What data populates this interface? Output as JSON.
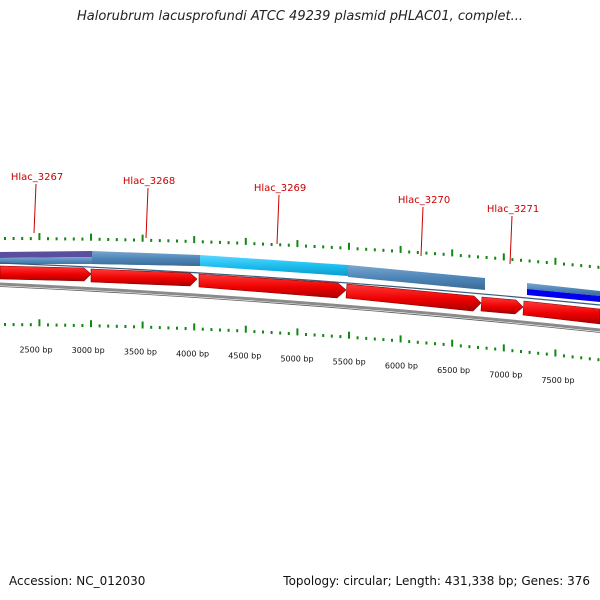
{
  "title": "Halorubrum lacusprofundi ATCC 49239 plasmid pHLAC01, complet...",
  "footer": {
    "accession": "Accession: NC_012030",
    "summary": "Topology: circular; Length: 431,338 bp; Genes: 376"
  },
  "genes": [
    "Hlac_3267",
    "Hlac_3268",
    "Hlac_3269",
    "Hlac_3270",
    "Hlac_3271"
  ],
  "scale_labels": [
    "2500 bp",
    "3000 bp",
    "3500 bp",
    "4000 bp",
    "4500 bp",
    "5000 bp",
    "5500 bp",
    "6000 bp",
    "6500 bp",
    "7000 bp",
    "7500 bp"
  ],
  "colors": {
    "gene_label": "#cc0000",
    "gene_arrow": "#ff0000",
    "gene_arrow_dark": "#b80000",
    "feature_blue": "#4682b4",
    "feature_cyan": "#1fbff0",
    "feature_navy": "#4b4b9a",
    "feature_strong_blue": "#0000ff",
    "tick": "#118811",
    "backbone": "#888888"
  }
}
